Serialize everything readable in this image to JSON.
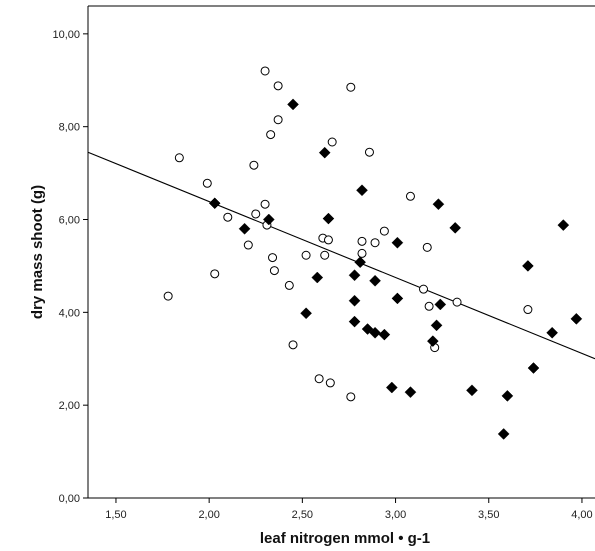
{
  "chart_data": {
    "type": "scatter",
    "xlabel": "leaf nitrogen mmol • g-1",
    "ylabel": "dry mass shoot (g)",
    "xlim": [
      1.35,
      4.07
    ],
    "ylim": [
      0,
      10.6
    ],
    "x_ticks": [
      1.5,
      2.0,
      2.5,
      3.0,
      3.5,
      4.0
    ],
    "x_tick_labels": [
      "1,50",
      "2,00",
      "2,50",
      "3,00",
      "3,50",
      "4,00"
    ],
    "y_ticks": [
      0,
      2,
      4,
      6,
      8,
      10
    ],
    "y_tick_labels": [
      "0,00",
      "2,00",
      "4,00",
      "6,00",
      "8,00",
      "10,00"
    ],
    "grid": false,
    "series": [
      {
        "marker": "open-circle",
        "color": "#000000",
        "points": [
          [
            1.78,
            4.35
          ],
          [
            1.84,
            7.33
          ],
          [
            1.99,
            6.78
          ],
          [
            2.03,
            4.83
          ],
          [
            2.1,
            6.05
          ],
          [
            2.21,
            5.45
          ],
          [
            2.24,
            7.17
          ],
          [
            2.25,
            6.12
          ],
          [
            2.3,
            9.2
          ],
          [
            2.3,
            6.33
          ],
          [
            2.31,
            5.88
          ],
          [
            2.33,
            7.83
          ],
          [
            2.34,
            5.18
          ],
          [
            2.35,
            4.9
          ],
          [
            2.37,
            8.88
          ],
          [
            2.37,
            8.15
          ],
          [
            2.43,
            4.58
          ],
          [
            2.45,
            3.3
          ],
          [
            2.52,
            5.23
          ],
          [
            2.59,
            2.57
          ],
          [
            2.61,
            5.6
          ],
          [
            2.62,
            5.23
          ],
          [
            2.64,
            5.56
          ],
          [
            2.65,
            2.48
          ],
          [
            2.66,
            7.67
          ],
          [
            2.76,
            8.85
          ],
          [
            2.76,
            2.18
          ],
          [
            2.82,
            5.53
          ],
          [
            2.82,
            5.27
          ],
          [
            2.86,
            7.45
          ],
          [
            2.89,
            5.5
          ],
          [
            2.94,
            5.75
          ],
          [
            3.08,
            6.5
          ],
          [
            3.15,
            4.5
          ],
          [
            3.17,
            5.4
          ],
          [
            3.18,
            4.13
          ],
          [
            3.21,
            3.24
          ],
          [
            3.33,
            4.22
          ],
          [
            3.71,
            4.06
          ]
        ]
      },
      {
        "marker": "filled-diamond",
        "color": "#000000",
        "points": [
          [
            2.03,
            6.35
          ],
          [
            2.19,
            5.8
          ],
          [
            2.32,
            6.0
          ],
          [
            2.45,
            8.48
          ],
          [
            2.52,
            3.98
          ],
          [
            2.58,
            4.75
          ],
          [
            2.62,
            7.44
          ],
          [
            2.64,
            6.02
          ],
          [
            2.78,
            4.8
          ],
          [
            2.78,
            4.25
          ],
          [
            2.78,
            3.8
          ],
          [
            2.81,
            5.08
          ],
          [
            2.82,
            6.63
          ],
          [
            2.85,
            3.64
          ],
          [
            2.89,
            4.68
          ],
          [
            2.89,
            3.56
          ],
          [
            2.94,
            3.52
          ],
          [
            2.98,
            2.38
          ],
          [
            3.01,
            5.5
          ],
          [
            3.01,
            4.3
          ],
          [
            3.08,
            2.28
          ],
          [
            3.2,
            3.38
          ],
          [
            3.22,
            3.72
          ],
          [
            3.23,
            6.33
          ],
          [
            3.24,
            4.17
          ],
          [
            3.32,
            5.82
          ],
          [
            3.41,
            2.32
          ],
          [
            3.58,
            1.38
          ],
          [
            3.6,
            2.2
          ],
          [
            3.71,
            5.0
          ],
          [
            3.74,
            2.8
          ],
          [
            3.84,
            3.56
          ],
          [
            3.9,
            5.88
          ],
          [
            3.97,
            3.86
          ]
        ]
      }
    ],
    "fit_line": [
      [
        1.35,
        7.45
      ],
      [
        4.07,
        3.0
      ]
    ]
  }
}
